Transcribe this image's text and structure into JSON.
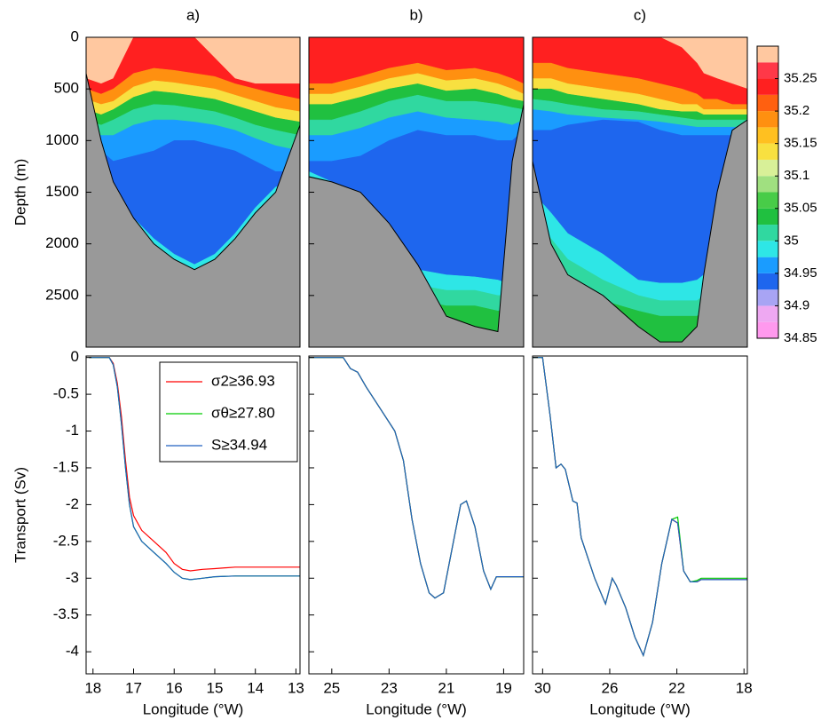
{
  "chart_data": [
    {
      "type": "section",
      "title": "a)",
      "ylabel": "Depth (m)",
      "y_inverted": true,
      "floor_color": "#999999",
      "xlim": [
        18.17,
        12.9
      ],
      "ylim": [
        0,
        3000
      ],
      "yticks": [
        0,
        500,
        1000,
        1500,
        2000,
        2500
      ],
      "x": [
        18.17,
        17.8,
        17.5,
        17,
        16.5,
        16,
        15.5,
        15,
        14.5,
        14,
        13.5,
        12.9
      ],
      "bottom": [
        350,
        1000,
        1400,
        1750,
        2000,
        2150,
        2250,
        2150,
        1950,
        1700,
        1500,
        850
      ],
      "layers": [
        {
          "value": 35.29,
          "depths": [
            400,
            450,
            400,
            0,
            0,
            0,
            0,
            200,
            400,
            450,
            450,
            450
          ]
        },
        {
          "value": 35.24,
          "depths": [
            500,
            550,
            500,
            350,
            300,
            320,
            350,
            380,
            450,
            500,
            550,
            600
          ]
        },
        {
          "value": 35.18,
          "depths": [
            600,
            650,
            620,
            480,
            420,
            440,
            470,
            500,
            560,
            620,
            680,
            720
          ]
        },
        {
          "value": 35.13,
          "depths": [
            700,
            750,
            700,
            580,
            520,
            540,
            570,
            600,
            660,
            720,
            780,
            820
          ]
        },
        {
          "value": 35.04,
          "depths": [
            800,
            850,
            800,
            700,
            650,
            660,
            690,
            720,
            780,
            850,
            900,
            950
          ]
        },
        {
          "value": 35.01,
          "depths": [
            900,
            950,
            950,
            850,
            800,
            800,
            820,
            850,
            900,
            980,
            1050,
            1100
          ]
        },
        {
          "value": 34.97,
          "depths": [
            1000,
            1100,
            1200,
            1150,
            1100,
            1000,
            1000,
            1050,
            1100,
            1200,
            1300,
            1300
          ]
        },
        {
          "value": 34.935,
          "depths": [
            1300,
            1500,
            1600,
            1750,
            1950,
            2100,
            2200,
            2100,
            1900,
            1650,
            1450,
            1400
          ]
        },
        {
          "value": 34.98,
          "depths": [
            1500,
            1600,
            1700,
            1850,
            2050,
            2150,
            2250,
            2150,
            1950,
            1700,
            1500,
            1450
          ]
        },
        {
          "value": 35.01,
          "depths": [
            3000,
            3000,
            3000,
            3000,
            3000,
            3000,
            3000,
            3000,
            3000,
            3000,
            3000,
            3000
          ]
        }
      ]
    },
    {
      "type": "section",
      "title": "b)",
      "y_inverted": true,
      "floor_color": "#999999",
      "xlim": [
        25.8,
        18.3
      ],
      "ylim": [
        0,
        3000
      ],
      "x": [
        25.8,
        25,
        24,
        23,
        22,
        21,
        20,
        19.2,
        18.7,
        18.3
      ],
      "bottom": [
        1350,
        1400,
        1500,
        1800,
        2200,
        2700,
        2800,
        2850,
        1200,
        650
      ],
      "layers": [
        {
          "value": 35.24,
          "depths": [
            450,
            450,
            380,
            300,
            250,
            320,
            300,
            350,
            400,
            450
          ]
        },
        {
          "value": 35.18,
          "depths": [
            550,
            550,
            480,
            400,
            350,
            420,
            400,
            450,
            500,
            550
          ]
        },
        {
          "value": 35.13,
          "depths": [
            650,
            650,
            580,
            500,
            450,
            520,
            500,
            550,
            600,
            620
          ]
        },
        {
          "value": 35.04,
          "depths": [
            800,
            800,
            720,
            620,
            560,
            620,
            620,
            650,
            680,
            700
          ]
        },
        {
          "value": 35.01,
          "depths": [
            950,
            950,
            880,
            780,
            720,
            780,
            800,
            820,
            850,
            800
          ]
        },
        {
          "value": 34.97,
          "depths": [
            1200,
            1200,
            1150,
            1000,
            900,
            950,
            950,
            1000,
            1000,
            900
          ]
        },
        {
          "value": 34.935,
          "depths": [
            1300,
            1400,
            1500,
            1900,
            2250,
            2300,
            2320,
            2350,
            2400,
            2400
          ]
        },
        {
          "value": 34.98,
          "depths": [
            1400,
            1500,
            1650,
            2050,
            2400,
            2450,
            2450,
            2500,
            2500,
            2500
          ]
        },
        {
          "value": 35.01,
          "depths": [
            1500,
            1650,
            1800,
            2200,
            2550,
            2600,
            2600,
            2650,
            2650,
            2650
          ]
        },
        {
          "value": 35.04,
          "depths": [
            3000,
            3000,
            3000,
            3000,
            3000,
            3000,
            3000,
            3000,
            3000,
            3000
          ]
        }
      ]
    },
    {
      "type": "section",
      "title": "c)",
      "y_inverted": true,
      "floor_color": "#999999",
      "xlim": [
        30.6,
        17.8
      ],
      "ylim": [
        0,
        3000
      ],
      "x": [
        30.6,
        29.5,
        28.5,
        26.4,
        24.3,
        23,
        21.7,
        20.8,
        20.4,
        19.6,
        18.7,
        17.8
      ],
      "bottom": [
        1200,
        2000,
        2300,
        2500,
        2800,
        2950,
        2950,
        2800,
        2300,
        1500,
        900,
        800
      ],
      "layers": [
        {
          "value": 35.29,
          "depths": [
            0,
            0,
            0,
            0,
            0,
            0,
            100,
            250,
            350,
            400,
            450,
            500
          ]
        },
        {
          "value": 35.24,
          "depths": [
            250,
            250,
            300,
            350,
            400,
            450,
            500,
            550,
            600,
            600,
            650,
            650
          ]
        },
        {
          "value": 35.18,
          "depths": [
            400,
            400,
            450,
            500,
            550,
            600,
            650,
            650,
            700,
            700,
            700,
            700
          ]
        },
        {
          "value": 35.13,
          "depths": [
            500,
            500,
            550,
            600,
            650,
            700,
            720,
            720,
            750,
            750,
            750,
            750
          ]
        },
        {
          "value": 35.04,
          "depths": [
            600,
            620,
            650,
            700,
            720,
            750,
            780,
            800,
            800,
            800,
            800,
            800
          ]
        },
        {
          "value": 35.01,
          "depths": [
            700,
            720,
            750,
            780,
            800,
            820,
            850,
            870,
            870,
            870,
            870,
            870
          ]
        },
        {
          "value": 34.97,
          "depths": [
            900,
            900,
            850,
            800,
            820,
            900,
            950,
            950,
            950,
            950,
            950,
            950
          ]
        },
        {
          "value": 34.935,
          "depths": [
            1500,
            1700,
            1900,
            2100,
            2350,
            2380,
            2380,
            2350,
            2300,
            2300,
            2300,
            2300
          ]
        },
        {
          "value": 34.98,
          "depths": [
            1700,
            1950,
            2150,
            2350,
            2500,
            2550,
            2550,
            2550,
            2500,
            2500,
            2500,
            2500
          ]
        },
        {
          "value": 35.01,
          "depths": [
            1900,
            2150,
            2350,
            2550,
            2650,
            2700,
            2700,
            2700,
            2650,
            2650,
            2650,
            2650
          ]
        },
        {
          "value": 35.04,
          "depths": [
            3000,
            3000,
            3000,
            3000,
            3000,
            3000,
            3000,
            3000,
            3000,
            3000,
            3000,
            3000
          ]
        }
      ]
    },
    {
      "type": "line",
      "ylabel": "Transport (Sv)",
      "xlabel": "Longitude (°W)",
      "legend": true,
      "xlim": [
        18.17,
        12.9
      ],
      "xticks": [
        18,
        17,
        16,
        15,
        14,
        13
      ],
      "ylim": [
        -4.3,
        0.02
      ],
      "yticks": [
        0,
        -0.5,
        -1,
        -1.5,
        -2,
        -2.5,
        -3,
        -3.5,
        -4
      ],
      "x": [
        18.1,
        17.6,
        17.5,
        17.4,
        17.3,
        17.2,
        17.1,
        17.0,
        16.8,
        16.5,
        16.2,
        16.0,
        15.8,
        15.6,
        15.3,
        15.0,
        14.5,
        14.0,
        13.0,
        12.9
      ],
      "series": [
        {
          "name": "σ2≥36.93",
          "color": "#ff0000",
          "values": [
            0,
            0,
            -0.08,
            -0.35,
            -0.8,
            -1.4,
            -1.9,
            -2.15,
            -2.35,
            -2.5,
            -2.65,
            -2.8,
            -2.88,
            -2.9,
            -2.88,
            -2.87,
            -2.85,
            -2.85,
            -2.85,
            -2.85
          ]
        },
        {
          "name": "σθ≥27.80",
          "color": "#00cc00",
          "values": [
            0,
            0,
            -0.1,
            -0.4,
            -0.9,
            -1.5,
            -2.0,
            -2.3,
            -2.5,
            -2.65,
            -2.8,
            -2.92,
            -3.0,
            -3.02,
            -3.0,
            -2.98,
            -2.97,
            -2.97,
            -2.97,
            -2.97
          ]
        },
        {
          "name": "S≥34.94",
          "color": "#2060c0",
          "values": [
            0,
            0,
            -0.1,
            -0.4,
            -0.9,
            -1.5,
            -2.0,
            -2.3,
            -2.5,
            -2.65,
            -2.8,
            -2.92,
            -3.0,
            -3.02,
            -3.0,
            -2.98,
            -2.97,
            -2.97,
            -2.97,
            -2.97
          ]
        }
      ]
    },
    {
      "type": "line",
      "xlabel": "Longitude (°W)",
      "xlim": [
        25.8,
        18.3
      ],
      "xticks": [
        25,
        23,
        21,
        19
      ],
      "ylim": [
        -4.3,
        0.02
      ],
      "x": [
        25.8,
        24.6,
        24.35,
        24.1,
        23.8,
        23.3,
        22.8,
        22.5,
        22.2,
        21.9,
        21.6,
        21.4,
        21.1,
        20.8,
        20.5,
        20.3,
        20.0,
        19.7,
        19.45,
        19.25,
        18.3
      ],
      "series": [
        {
          "color": "#ff0000",
          "values": [
            0,
            0,
            -0.15,
            -0.2,
            -0.4,
            -0.7,
            -1.0,
            -1.4,
            -2.2,
            -2.8,
            -3.2,
            -3.27,
            -3.2,
            -2.6,
            -2.0,
            -1.95,
            -2.3,
            -2.9,
            -3.15,
            -2.98,
            -2.98
          ]
        },
        {
          "color": "#00cc00",
          "values": [
            0,
            0,
            -0.15,
            -0.2,
            -0.4,
            -0.7,
            -1.0,
            -1.4,
            -2.2,
            -2.8,
            -3.2,
            -3.27,
            -3.2,
            -2.6,
            -2.0,
            -1.95,
            -2.3,
            -2.9,
            -3.15,
            -2.98,
            -2.98
          ]
        },
        {
          "color": "#2060c0",
          "values": [
            0,
            0,
            -0.15,
            -0.2,
            -0.4,
            -0.7,
            -1.0,
            -1.4,
            -2.2,
            -2.8,
            -3.2,
            -3.27,
            -3.2,
            -2.6,
            -2.0,
            -1.95,
            -2.3,
            -2.9,
            -3.15,
            -2.98,
            -2.98
          ]
        }
      ]
    },
    {
      "type": "line",
      "xlabel": "Longitude (°W)",
      "xlim": [
        30.6,
        17.8
      ],
      "xticks": [
        30,
        26,
        22,
        18
      ],
      "ylim": [
        -4.3,
        0.02
      ],
      "x": [
        30.6,
        30.0,
        29.55,
        29.2,
        28.9,
        28.65,
        28.2,
        27.95,
        27.7,
        26.9,
        26.25,
        25.85,
        25.6,
        25.05,
        24.5,
        24.0,
        23.45,
        22.9,
        22.3,
        21.95,
        21.6,
        21.2,
        20.8,
        20.55,
        17.8
      ],
      "series": [
        {
          "color": "#ff0000",
          "values": [
            0,
            0,
            -0.8,
            -1.5,
            -1.45,
            -1.52,
            -1.95,
            -1.98,
            -2.45,
            -3.0,
            -3.35,
            -3.0,
            -3.1,
            -3.4,
            -3.8,
            -4.05,
            -3.6,
            -2.8,
            -2.2,
            -2.25,
            -2.9,
            -3.05,
            -3.05,
            -3.02,
            -3.02
          ]
        },
        {
          "color": "#00cc00",
          "values": [
            0,
            0,
            -0.8,
            -1.5,
            -1.45,
            -1.52,
            -1.95,
            -1.98,
            -2.45,
            -3.0,
            -3.35,
            -3.0,
            -3.1,
            -3.4,
            -3.8,
            -4.05,
            -3.6,
            -2.8,
            -2.2,
            -2.17,
            -2.9,
            -3.05,
            -3.03,
            -3.0,
            -3.0
          ]
        },
        {
          "color": "#2060c0",
          "values": [
            0,
            0,
            -0.8,
            -1.5,
            -1.45,
            -1.52,
            -1.95,
            -1.98,
            -2.45,
            -3.0,
            -3.35,
            -3.0,
            -3.1,
            -3.4,
            -3.8,
            -4.05,
            -3.6,
            -2.8,
            -2.2,
            -2.25,
            -2.9,
            -3.05,
            -3.05,
            -3.02,
            -3.02
          ]
        }
      ]
    },
    {
      "type": "colorbar",
      "levels": [
        34.85,
        34.875,
        34.9,
        34.925,
        34.95,
        34.975,
        35,
        35.025,
        35.05,
        35.075,
        35.1,
        35.125,
        35.15,
        35.175,
        35.2,
        35.225,
        35.25,
        35.275,
        35.3
      ],
      "colors": [
        "#ff99ee",
        "#eea8f2",
        "#a8a4f4",
        "#1e66ee",
        "#1a9cff",
        "#2ee6e6",
        "#30d8a0",
        "#20c040",
        "#48cc48",
        "#a0e080",
        "#d8f098",
        "#f8e040",
        "#ffc020",
        "#ff9010",
        "#ff6010",
        "#ff2020",
        "#ff3848",
        "#ffc8a0"
      ],
      "ticks": [
        35.25,
        35.2,
        35.15,
        35.1,
        35.05,
        35,
        34.95,
        34.9,
        34.85
      ]
    }
  ]
}
